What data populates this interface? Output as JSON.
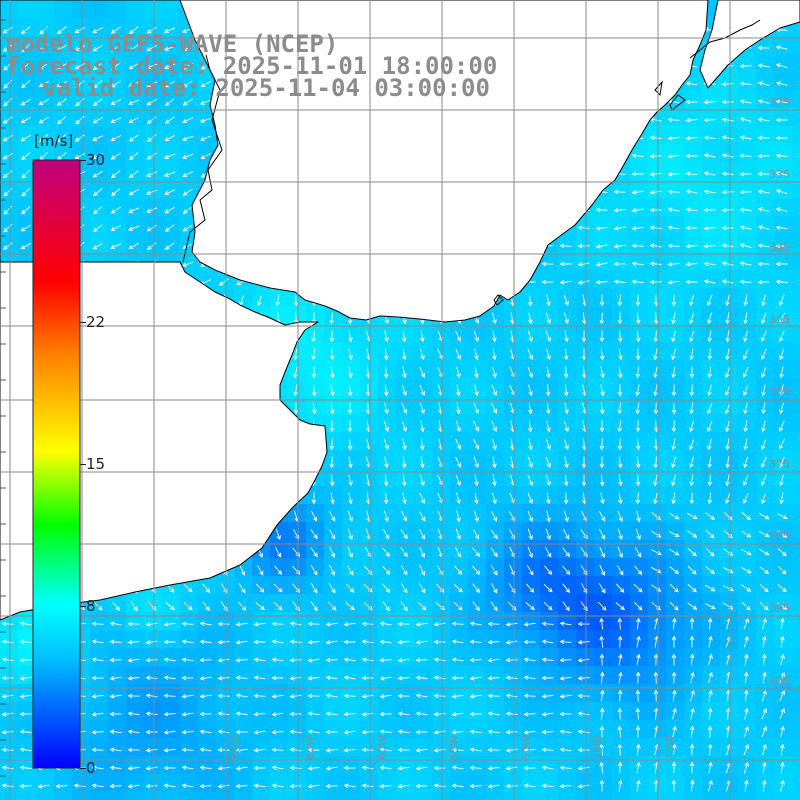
{
  "title": {
    "line1": "modelo GEFS-WAVE (NCEP)",
    "line2": "forecast date: 2025-11-01 18:00:00",
    "line3": "valid date: 2025-11-04 03:00:00"
  },
  "colorbar": {
    "units": "[m/s]",
    "ticks": [
      {
        "label": "30",
        "value": 30
      },
      {
        "label": "22",
        "value": 22
      },
      {
        "label": "15",
        "value": 15
      },
      {
        "label": "8",
        "value": 8
      },
      {
        "label": "0",
        "value": 0
      }
    ],
    "stops": [
      "#0000ff",
      "#00bfff",
      "#00ffff",
      "#00ff00",
      "#ffff00",
      "#ff8000",
      "#ff0000",
      "#c0007f"
    ]
  },
  "colors": {
    "land": "#ffffff",
    "coast": "#000000",
    "grid": "#8a8a8a",
    "arrow": "#ffffff",
    "label": "#8c8c8c"
  },
  "latitude_labels": [
    "325",
    "335",
    "345",
    "355",
    "365",
    "375",
    "385",
    "395",
    "405"
  ],
  "longitude_labels": [
    "70W",
    "65W",
    "60W",
    "55W",
    "50W",
    "45W",
    "40W"
  ]
}
